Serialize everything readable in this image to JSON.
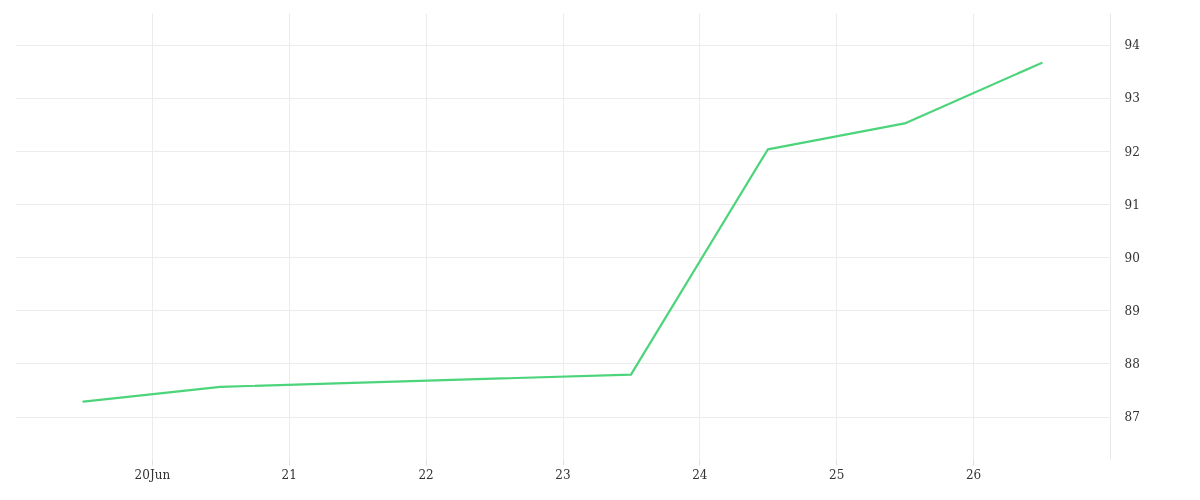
{
  "chart_data": {
    "type": "line",
    "x": [
      "--06-19T12:00",
      "--06-20T12:00",
      "--06-23T12:00",
      "--06-24T12:00",
      "--06-25T12:00",
      "--06-26T12:00"
    ],
    "series": [
      {
        "color": "#4cd47a",
        "values": [
          87.28,
          87.56,
          87.79,
          92.03,
          92.52,
          93.66
        ]
      }
    ],
    "xlim": [
      "--06-19T00:00",
      "--06-27T00:00"
    ],
    "xticks": [
      {
        "value": "--06-20",
        "label": "20Jun"
      },
      {
        "value": "--06-21",
        "label": "21"
      },
      {
        "value": "--06-22",
        "label": "22"
      },
      {
        "value": "--06-23",
        "label": "23"
      },
      {
        "value": "--06-24",
        "label": "24"
      },
      {
        "value": "--06-25",
        "label": "25"
      },
      {
        "value": "--06-26",
        "label": "26"
      }
    ],
    "ylim": [
      86.2,
      94.6
    ],
    "yticks": [
      87,
      88,
      89,
      90,
      91,
      92,
      93,
      94
    ],
    "grid": true,
    "marker": "none",
    "line_style": "solid"
  }
}
